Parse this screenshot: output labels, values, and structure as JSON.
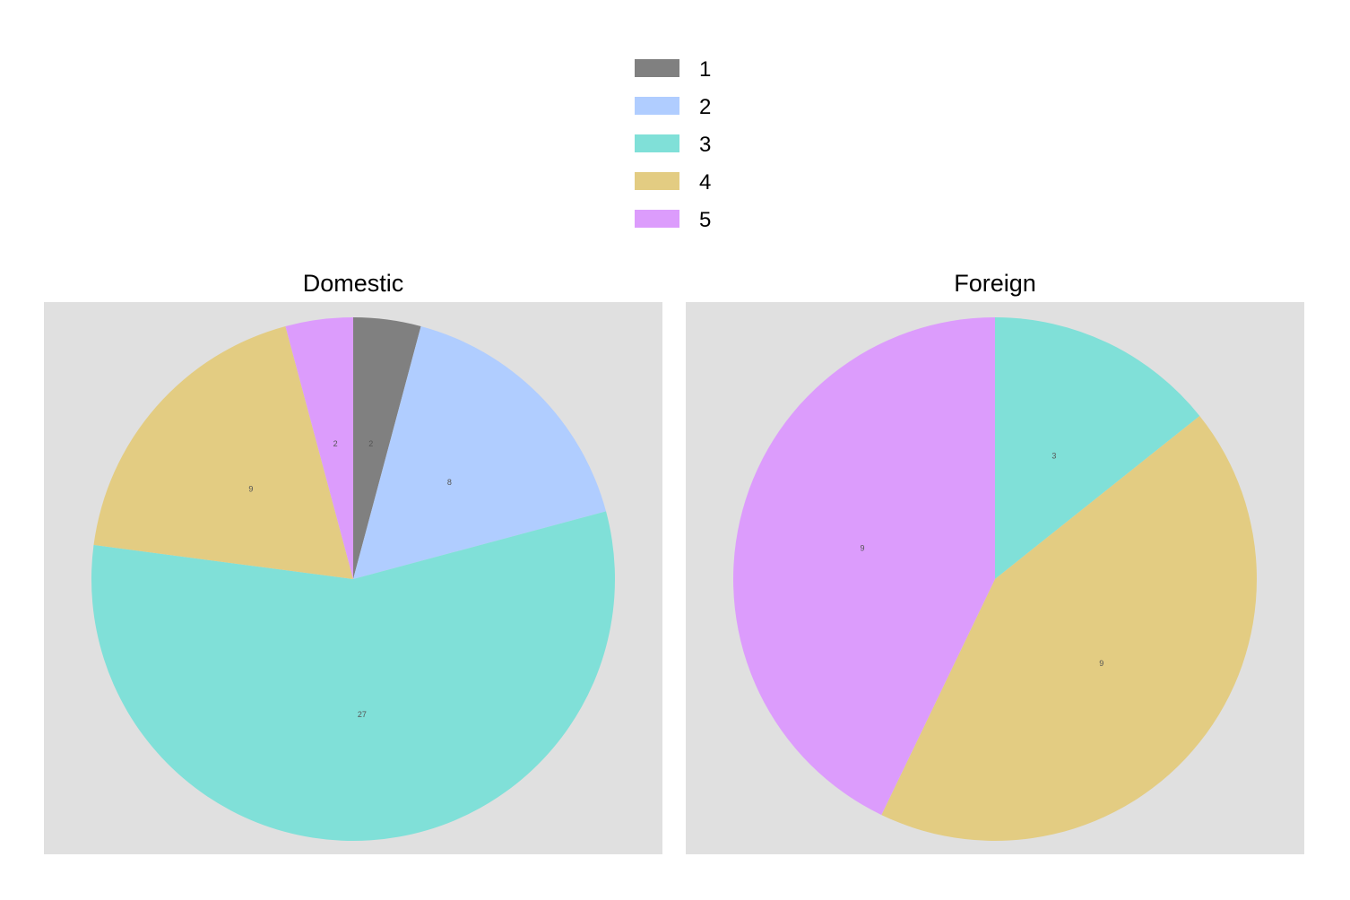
{
  "legend": {
    "items": [
      {
        "label": "1",
        "color": "#808080"
      },
      {
        "label": "2",
        "color": "#b0cdff"
      },
      {
        "label": "3",
        "color": "#80e0d8"
      },
      {
        "label": "4",
        "color": "#e3cc82"
      },
      {
        "label": "5",
        "color": "#dc9cfc"
      }
    ]
  },
  "chart_data": [
    {
      "type": "pie",
      "title": "Domestic",
      "categories": [
        "1",
        "2",
        "3",
        "4",
        "5"
      ],
      "values": [
        2,
        8,
        27,
        9,
        2
      ],
      "labels": [
        "2",
        "8",
        "27",
        "9",
        "2"
      ]
    },
    {
      "type": "pie",
      "title": "Foreign",
      "categories": [
        "3",
        "4",
        "5"
      ],
      "values": [
        3,
        9,
        9
      ],
      "labels": [
        "3",
        "9",
        "9"
      ]
    }
  ]
}
